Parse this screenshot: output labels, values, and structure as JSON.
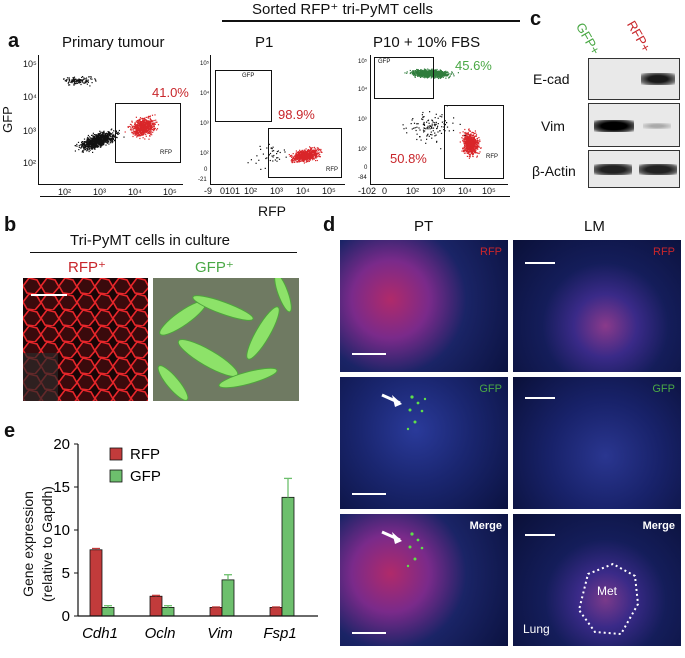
{
  "panel_letters": {
    "a": "a",
    "b": "b",
    "c": "c",
    "d": "d",
    "e": "e"
  },
  "panel_a": {
    "header": "Sorted  RFP⁺ tri-PyMT cells",
    "y_axis_label": "GFP",
    "x_axis_label": "RFP",
    "plots": [
      {
        "title": "Primary tumour",
        "gate_rfp_label": "RFP",
        "rfp_pct": "41.0%",
        "yticks": [
          "10⁵",
          "10⁴",
          "10³",
          "10²"
        ],
        "xticks": [
          "10²",
          "10³",
          "10⁴",
          "10⁵"
        ]
      },
      {
        "title": "P1",
        "gate_rfp_label": "RFP",
        "gate_gfp_label": "GFP",
        "rfp_pct": "98.9%",
        "yticks": [
          "10⁵",
          "10⁴",
          "10³",
          "10²",
          "0",
          "-21"
        ],
        "xticks": [
          "-9",
          "0101",
          "10²",
          "10³",
          "10⁴",
          "10⁵"
        ]
      },
      {
        "title": "P10 + 10% FBS",
        "gate_rfp_label": "RFP",
        "gate_gfp_label": "GFP",
        "rfp_pct": "50.8%",
        "gfp_pct": "45.6%",
        "yticks": [
          "10⁵",
          "10⁴",
          "10³",
          "10²",
          "0",
          "-84"
        ],
        "xticks": [
          "-102",
          "0",
          "10²",
          "10³",
          "10⁴",
          "10⁵"
        ]
      }
    ],
    "colors": {
      "rfp": "#d9262a",
      "gfp": "#2f7d3c",
      "neg": "#111111"
    }
  },
  "panel_b": {
    "header": "Tri-PyMT cells in culture",
    "left": "RFP⁺",
    "right": "GFP⁺"
  },
  "panel_c": {
    "columns": [
      "GFP+",
      "RFP+"
    ],
    "rows": [
      "E-cad",
      "Vim",
      "β-Actin"
    ]
  },
  "panel_d": {
    "columns": [
      "PT",
      "LM"
    ],
    "channels": [
      "RFP",
      "GFP",
      "Merge"
    ],
    "met_label": "Met",
    "lung_label": "Lung"
  },
  "chart_data": {
    "type": "bar",
    "categories": [
      "Cdh1",
      "Ocln",
      "Vim",
      "Fsp1"
    ],
    "series": [
      {
        "name": "RFP",
        "values": [
          7.7,
          2.3,
          1.0,
          1.0
        ],
        "errors": [
          0.15,
          0.1,
          0.05,
          0.05
        ],
        "color": "#c23b3b"
      },
      {
        "name": "GFP",
        "values": [
          1.0,
          1.0,
          4.2,
          13.8
        ],
        "errors": [
          0.2,
          0.2,
          0.6,
          2.2
        ],
        "color": "#6dbf6d"
      }
    ],
    "ylabel": "Gene expression",
    "ylabel2": "(relative to Gapdh)",
    "ylim": [
      0,
      20
    ],
    "yticks": [
      0,
      5,
      10,
      15,
      20
    ],
    "legend_position": "top-left"
  }
}
